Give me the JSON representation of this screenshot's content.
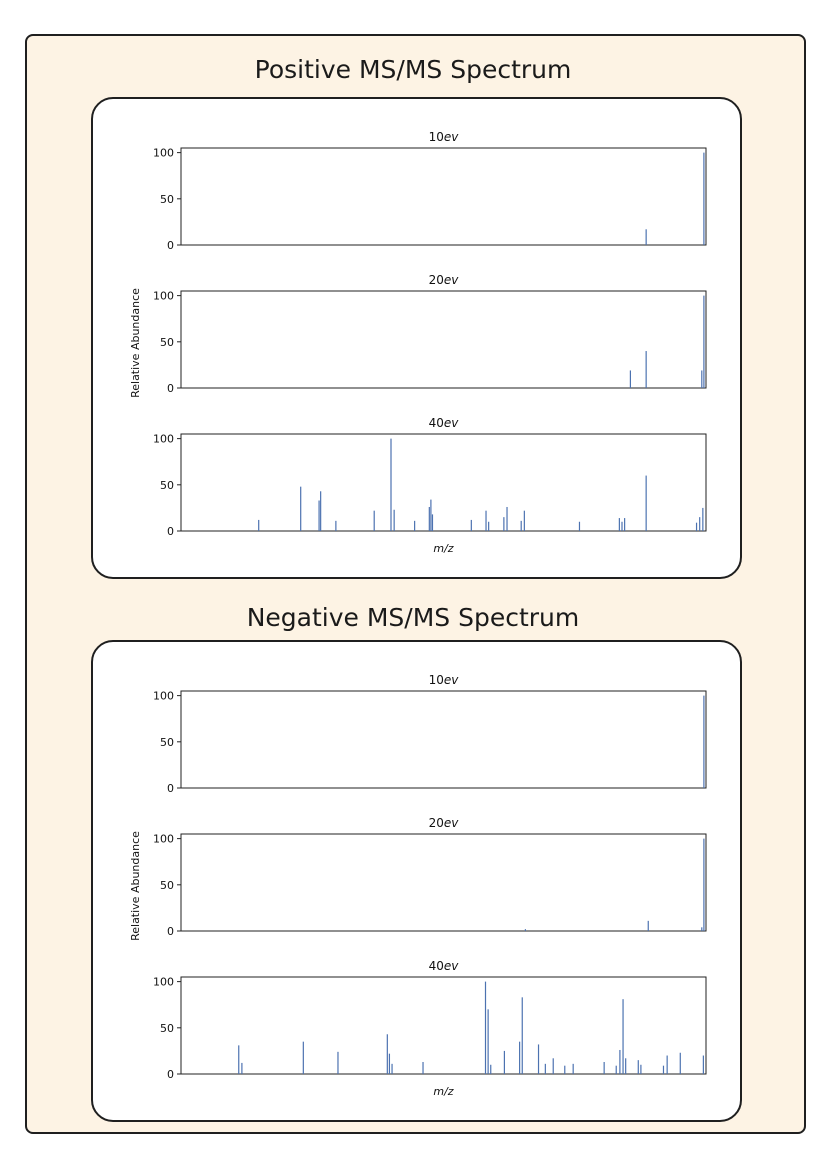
{
  "sections": [
    {
      "title": "Positive MS/MS Spectrum",
      "ylabel": "Relative Abundance",
      "xlabel": "m/z"
    },
    {
      "title": "Negative MS/MS Spectrum",
      "ylabel": "Relative Abundance",
      "xlabel": "m/z"
    }
  ],
  "chart_data": [
    {
      "type": "bar",
      "title": "Positive MS/MS Spectrum",
      "ylabel": "Relative Abundance",
      "xlabel": "m/z",
      "xlim": [
        0,
        100
      ],
      "ylim": [
        0,
        105
      ],
      "yticks": [
        0,
        50,
        100
      ],
      "panels": [
        {
          "energy": "10ev",
          "peaks": [
            {
              "x": 88.6,
              "y": 17
            },
            {
              "x": 99.6,
              "y": 100
            }
          ]
        },
        {
          "energy": "20ev",
          "peaks": [
            {
              "x": 85.6,
              "y": 19
            },
            {
              "x": 88.6,
              "y": 40
            },
            {
              "x": 99.2,
              "y": 19
            },
            {
              "x": 99.6,
              "y": 100
            }
          ]
        },
        {
          "energy": "40ev",
          "peaks": [
            {
              "x": 14.8,
              "y": 12
            },
            {
              "x": 22.8,
              "y": 48
            },
            {
              "x": 26.3,
              "y": 33
            },
            {
              "x": 26.6,
              "y": 43
            },
            {
              "x": 29.5,
              "y": 11
            },
            {
              "x": 36.8,
              "y": 22
            },
            {
              "x": 40.0,
              "y": 100
            },
            {
              "x": 40.6,
              "y": 23
            },
            {
              "x": 44.5,
              "y": 11
            },
            {
              "x": 47.3,
              "y": 26
            },
            {
              "x": 47.6,
              "y": 34
            },
            {
              "x": 47.9,
              "y": 18
            },
            {
              "x": 55.3,
              "y": 12
            },
            {
              "x": 58.1,
              "y": 22
            },
            {
              "x": 58.6,
              "y": 10
            },
            {
              "x": 61.5,
              "y": 15
            },
            {
              "x": 62.1,
              "y": 26
            },
            {
              "x": 64.8,
              "y": 11
            },
            {
              "x": 65.4,
              "y": 22
            },
            {
              "x": 75.9,
              "y": 10
            },
            {
              "x": 83.5,
              "y": 14
            },
            {
              "x": 84.0,
              "y": 10
            },
            {
              "x": 84.5,
              "y": 14
            },
            {
              "x": 88.6,
              "y": 60
            },
            {
              "x": 98.2,
              "y": 9
            },
            {
              "x": 98.8,
              "y": 15
            },
            {
              "x": 99.4,
              "y": 25
            }
          ]
        }
      ]
    },
    {
      "type": "bar",
      "title": "Negative MS/MS Spectrum",
      "ylabel": "Relative Abundance",
      "xlabel": "m/z",
      "xlim": [
        0,
        100
      ],
      "ylim": [
        0,
        105
      ],
      "yticks": [
        0,
        50,
        100
      ],
      "panels": [
        {
          "energy": "10ev",
          "peaks": [
            {
              "x": 99.6,
              "y": 100
            }
          ]
        },
        {
          "energy": "20ev",
          "peaks": [
            {
              "x": 65.6,
              "y": 2
            },
            {
              "x": 89.0,
              "y": 11
            },
            {
              "x": 99.2,
              "y": 4
            },
            {
              "x": 99.6,
              "y": 100
            }
          ]
        },
        {
          "energy": "40ev",
          "peaks": [
            {
              "x": 11.0,
              "y": 31
            },
            {
              "x": 11.6,
              "y": 12
            },
            {
              "x": 23.3,
              "y": 35
            },
            {
              "x": 29.9,
              "y": 24
            },
            {
              "x": 39.3,
              "y": 43
            },
            {
              "x": 39.7,
              "y": 22
            },
            {
              "x": 40.2,
              "y": 11
            },
            {
              "x": 46.1,
              "y": 13
            },
            {
              "x": 58.0,
              "y": 100
            },
            {
              "x": 58.5,
              "y": 70
            },
            {
              "x": 59.0,
              "y": 10
            },
            {
              "x": 61.6,
              "y": 25
            },
            {
              "x": 64.5,
              "y": 35
            },
            {
              "x": 65.0,
              "y": 83
            },
            {
              "x": 68.1,
              "y": 32
            },
            {
              "x": 69.4,
              "y": 11
            },
            {
              "x": 70.9,
              "y": 17
            },
            {
              "x": 73.1,
              "y": 9
            },
            {
              "x": 74.7,
              "y": 11
            },
            {
              "x": 80.6,
              "y": 13
            },
            {
              "x": 82.9,
              "y": 9
            },
            {
              "x": 83.6,
              "y": 26
            },
            {
              "x": 84.2,
              "y": 81
            },
            {
              "x": 84.7,
              "y": 17
            },
            {
              "x": 87.1,
              "y": 15
            },
            {
              "x": 87.6,
              "y": 10
            },
            {
              "x": 91.9,
              "y": 9
            },
            {
              "x": 92.6,
              "y": 20
            },
            {
              "x": 95.1,
              "y": 23
            },
            {
              "x": 99.5,
              "y": 20
            }
          ]
        }
      ]
    }
  ]
}
